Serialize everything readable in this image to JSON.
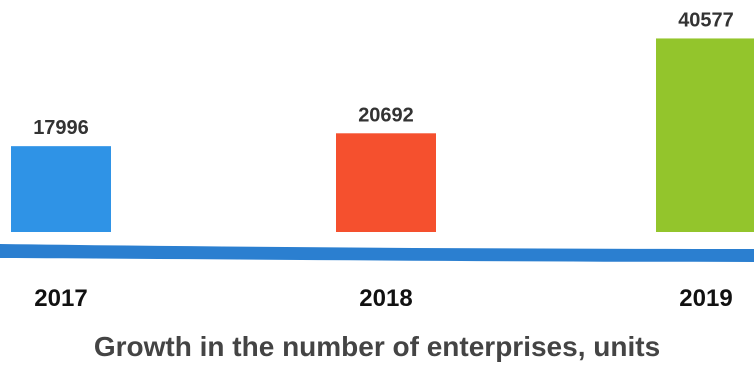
{
  "chart_data": {
    "type": "bar",
    "categories": [
      "2017",
      "2018",
      "2019"
    ],
    "values": [
      17996,
      20692,
      40577
    ],
    "colors": [
      "#2f93e6",
      "#f5502e",
      "#93c52c"
    ],
    "title": "Growth in the number of enterprises, units",
    "xlabel": "",
    "ylabel": "",
    "grid": false,
    "legend": "none",
    "baseline_color": "#2b7fd0"
  }
}
